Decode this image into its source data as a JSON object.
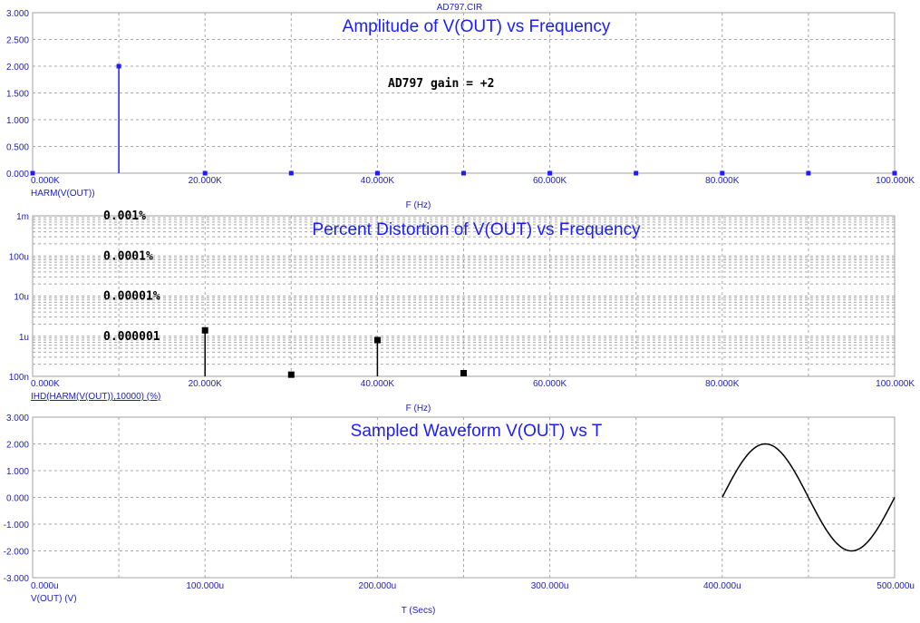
{
  "window": {
    "filename": "AD797.CIR"
  },
  "colors": {
    "axis_text": "#2020c0",
    "title": "#1c1cff",
    "grid": "#a8a8a8",
    "frame": "#a0a0a0",
    "harm_series": "#1c1cff",
    "ihd_series": "#000000",
    "wave_series": "#000000"
  },
  "chart_data": [
    {
      "type": "bar",
      "title": "Amplitude of V(OUT) vs Frequency",
      "xlabel": "F (Hz)",
      "trace_label": "HARM(V(OUT))",
      "annotation": "AD797 gain = +2",
      "x_ticks": [
        "0.000K",
        "20.000K",
        "40.000K",
        "60.000K",
        "80.000K",
        "100.000K"
      ],
      "y_ticks": [
        "3.000",
        "2.500",
        "2.000",
        "1.500",
        "1.000",
        "0.500",
        "0.000"
      ],
      "xlim": [
        0,
        100000
      ],
      "ylim": [
        0,
        3
      ],
      "grid": true,
      "series": [
        {
          "x": [
            0,
            10000,
            20000,
            30000,
            40000,
            50000,
            60000,
            70000,
            80000,
            90000,
            100000
          ],
          "values": [
            0,
            2.0,
            0,
            0,
            0,
            0,
            0,
            0,
            0,
            0,
            0
          ]
        }
      ]
    },
    {
      "type": "bar",
      "title": "Percent Distortion of V(OUT) vs Frequency",
      "xlabel": "F (Hz)",
      "trace_label": "IHD(HARM(V(OUT)),10000) (%)",
      "y_scale": "log",
      "x_ticks": [
        "0.000K",
        "20.000K",
        "40.000K",
        "60.000K",
        "80.000K",
        "100.000K"
      ],
      "y_ticks": [
        "1m",
        "100u",
        "10u",
        "1u",
        "100n"
      ],
      "annotations": [
        {
          "text": "0.001%",
          "at": 0.001
        },
        {
          "text": "0.0001%",
          "at": 0.0001
        },
        {
          "text": "0.00001%",
          "at": 1e-05
        },
        {
          "text": "0.000001",
          "at": 1e-06
        }
      ],
      "xlim": [
        0,
        100000
      ],
      "ylim": [
        1e-07,
        0.001
      ],
      "grid": true,
      "series": [
        {
          "x": [
            20000,
            30000,
            40000,
            50000
          ],
          "values": [
            1.4e-06,
            1.1e-07,
            8e-07,
            1.2e-07
          ]
        }
      ]
    },
    {
      "type": "line",
      "title": "Sampled Waveform  V(OUT) vs T",
      "xlabel": "T (Secs)",
      "trace_label": "V(OUT) (V)",
      "x_ticks": [
        "0.000u",
        "100.000u",
        "200.000u",
        "300.000u",
        "400.000u",
        "500.000u"
      ],
      "y_ticks": [
        "3.000",
        "2.000",
        "1.000",
        "0.000",
        "-1.000",
        "-2.000",
        "-3.000"
      ],
      "xlim": [
        0,
        500
      ],
      "ylim": [
        -3,
        3
      ],
      "grid": true,
      "series": [
        {
          "x": [
            400,
            412.5,
            425,
            437.5,
            450,
            462.5,
            475,
            487.5,
            500
          ],
          "values": [
            0,
            1.414,
            2.0,
            1.414,
            0,
            -1.414,
            -2.0,
            -1.414,
            0
          ]
        }
      ]
    }
  ]
}
